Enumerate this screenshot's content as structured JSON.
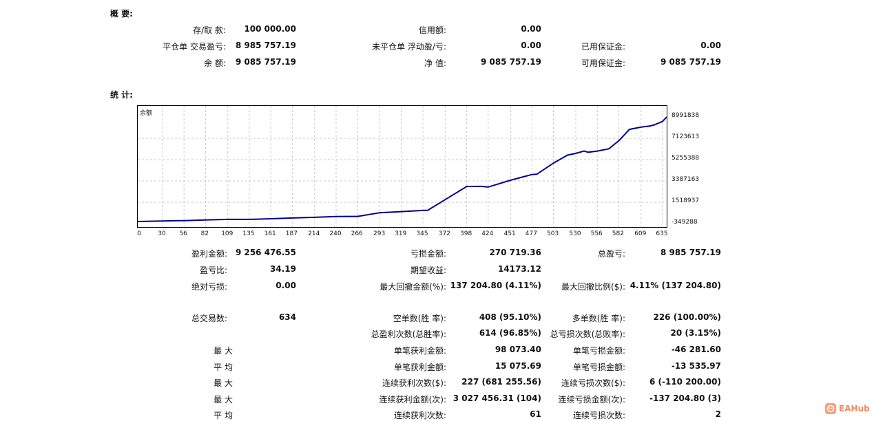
{
  "summary": {
    "header": "概 要:",
    "deposit_label": "存/取 款:",
    "deposit_value": "100 000.00",
    "credit_label": "信用额:",
    "credit_value": "0.00",
    "closed_pl_label": "平仓单 交易盈亏:",
    "closed_pl_value": "8 985 757.19",
    "floating_pl_label": "未平仓单 浮动盈/亏:",
    "floating_pl_value": "0.00",
    "margin_label": "已用保证金:",
    "margin_value": "0.00",
    "balance_label": "余 额:",
    "balance_value": "9 085 757.19",
    "equity_label": "净 值:",
    "equity_value": "9 085 757.19",
    "free_margin_label": "可用保证金:",
    "free_margin_value": "9 085 757.19"
  },
  "stats": {
    "header": "统 计:",
    "gross_profit_label": "盈利金额:",
    "gross_profit_value": "9 256 476.55",
    "gross_loss_label": "亏损金额:",
    "gross_loss_value": "270 719.36",
    "total_net_label": "总盈亏:",
    "total_net_value": "8 985 757.19",
    "profit_factor_label": "盈亏比:",
    "profit_factor_value": "34.19",
    "expected_label": "期望收益:",
    "expected_value": "14173.12",
    "abs_dd_label": "绝对亏损:",
    "abs_dd_value": "0.00",
    "max_dd_label": "最大回撤金额(%):",
    "max_dd_value": "137 204.80 (4.11%)",
    "rel_dd_label": "最大回撤比例($):",
    "rel_dd_value": "4.11% (137 204.80)",
    "total_trades_label": "总交易数:",
    "total_trades_value": "634",
    "short_label": "空单数(胜 率):",
    "short_value": "408 (95.10%)",
    "long_label": "多单数(胜 率):",
    "long_value": "226 (100.00%)",
    "profit_trades_label": "总盈利次数(总胜率):",
    "profit_trades_value": "614 (96.85%)",
    "loss_trades_label": "总亏损次数(总败率):",
    "loss_trades_value": "20 (3.15%)",
    "row_max1": "最 大",
    "largest_profit_label": "单笔获利金额:",
    "largest_profit_value": "98 073.40",
    "largest_loss_label": "单笔亏损金额:",
    "largest_loss_value": "-46 281.60",
    "row_avg1": "平 均",
    "avg_profit_label": "单笔获利金额:",
    "avg_profit_value": "15 075.69",
    "avg_loss_label": "单笔亏损金额:",
    "avg_loss_value": "-13 535.97",
    "row_max2": "最 大",
    "max_consec_wins_label": "连续获利次数($):",
    "max_consec_wins_value": "227 (681 255.56)",
    "max_consec_losses_label": "连续亏损次数($):",
    "max_consec_losses_value": "6 (-110 200.00)",
    "row_max3": "最 大",
    "max_consec_profit_label": "连续获利金额(次):",
    "max_consec_profit_value": "3 027 456.31 (104)",
    "max_consec_loss_label": "连续亏损金额(次):",
    "max_consec_loss_value": "-137 204.80 (3)",
    "row_avg2": "平 均",
    "avg_consec_wins_label": "连续获利次数:",
    "avg_consec_wins_value": "61",
    "avg_consec_losses_label": "连续亏损次数:",
    "avg_consec_losses_value": "2"
  },
  "watermark": {
    "text": "EAHub",
    "icon": "eahub-logo-icon",
    "color": "#ef8b5e"
  },
  "chart_data": {
    "type": "line",
    "title": "余额",
    "line_color": "#00008b",
    "grid": true,
    "grid_color": "#c8c8c8",
    "ylim": [
      -349288,
      8991838
    ],
    "yticks": [
      "8991838",
      "7123613",
      "5255388",
      "3387163",
      "1518937",
      "-349288"
    ],
    "xlim": [
      0,
      640
    ],
    "xticks": [
      "0",
      "30",
      "56",
      "82",
      "109",
      "135",
      "161",
      "187",
      "214",
      "240",
      "266",
      "293",
      "319",
      "345",
      "372",
      "398",
      "424",
      "451",
      "477",
      "503",
      "530",
      "556",
      "582",
      "609",
      "635"
    ],
    "series": [
      {
        "x": [
          0,
          30,
          56,
          82,
          109,
          135,
          161,
          187,
          214,
          240,
          266,
          293,
          319,
          345,
          351,
          372,
          398,
          415,
          424,
          451,
          477,
          483,
          503,
          520,
          530,
          540,
          545,
          556,
          570,
          582,
          595,
          609,
          620,
          625,
          635,
          640
        ],
        "y": [
          -170000,
          -120000,
          -90000,
          -30000,
          20000,
          20000,
          70000,
          140000,
          200000,
          270000,
          280000,
          600000,
          700000,
          800000,
          820000,
          1750000,
          2900000,
          2910000,
          2850000,
          3450000,
          3950000,
          3980000,
          4950000,
          5650000,
          5800000,
          6000000,
          5900000,
          6000000,
          6200000,
          6900000,
          7900000,
          8100000,
          8200000,
          8300000,
          8600000,
          8991838
        ]
      }
    ]
  }
}
